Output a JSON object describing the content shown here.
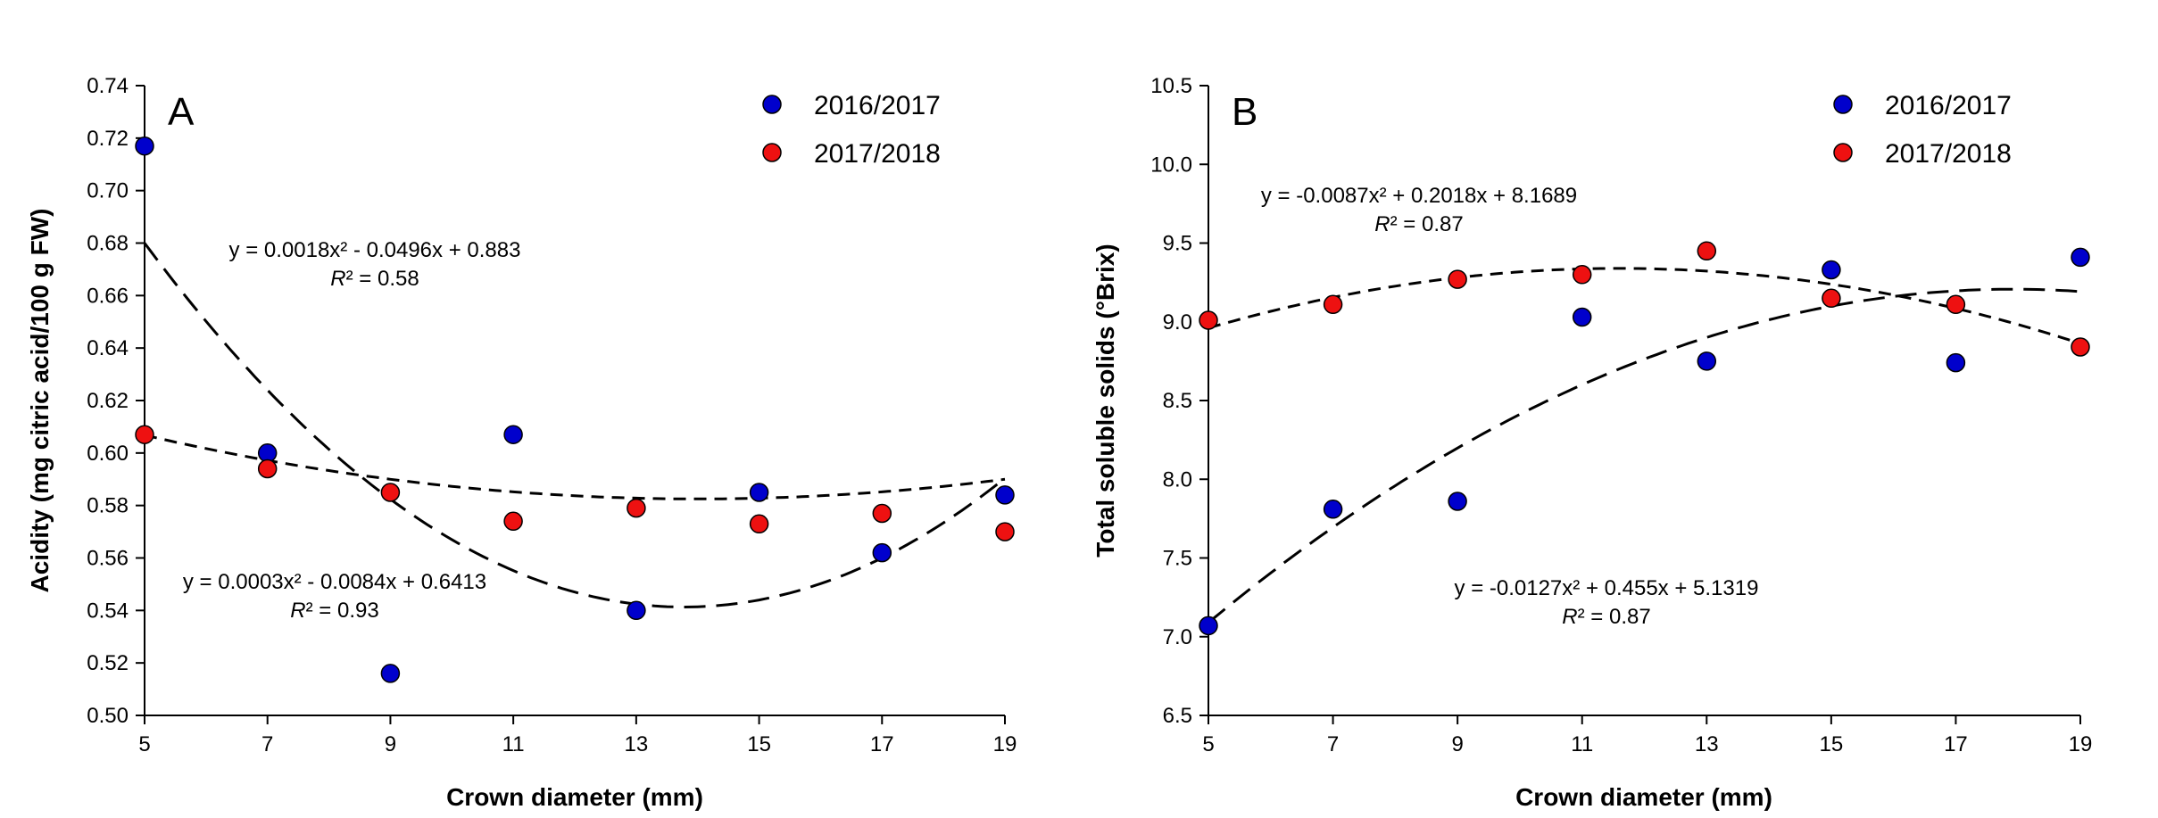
{
  "charts": [
    {
      "panel_label": "A",
      "xlabel": "Crown diameter (mm)",
      "ylabel": "Acidity (mg citric acid/100 g FW)",
      "equations": [
        {
          "series": "2016/2017",
          "eq": "y = 0.0018x² - 0.0496x + 0.883",
          "r2_label": "R",
          "r2_value": "² = 0.58"
        },
        {
          "series": "2017/2018",
          "eq": "y = 0.0003x² - 0.0084x + 0.6413",
          "r2_label": "R",
          "r2_value": "² = 0.93"
        }
      ]
    },
    {
      "panel_label": "B",
      "xlabel": "Crown diameter (mm)",
      "ylabel": "Total soluble solids (°Brix)",
      "equations": [
        {
          "series": "2017/2018",
          "eq": "y = -0.0087x² + 0.2018x + 8.1689",
          "r2_label": "R",
          "r2_value": "² = 0.87"
        },
        {
          "series": "2016/2017",
          "eq": "y = -0.0127x² + 0.455x + 5.1319",
          "r2_label": "R",
          "r2_value": "² = 0.87"
        }
      ]
    }
  ],
  "chart_data": [
    {
      "type": "scatter",
      "panel": "A",
      "title": "",
      "xlabel": "Crown diameter (mm)",
      "ylabel": "Acidity (mg citric acid/100 g FW)",
      "xlim": [
        5,
        19
      ],
      "ylim": [
        0.5,
        0.74
      ],
      "x_ticks": [
        "5",
        "7",
        "9",
        "11",
        "13",
        "15",
        "17",
        "19"
      ],
      "y_ticks": [
        "0.50",
        "0.52",
        "0.54",
        "0.56",
        "0.58",
        "0.60",
        "0.62",
        "0.64",
        "0.66",
        "0.68",
        "0.70",
        "0.72",
        "0.74"
      ],
      "legend_position": "top-right",
      "grid": false,
      "series": [
        {
          "name": "2016/2017",
          "color": "#0000cc",
          "x": [
            5,
            7,
            9,
            11,
            13,
            15,
            17,
            19
          ],
          "y": [
            0.717,
            0.6,
            0.516,
            0.607,
            0.54,
            0.585,
            0.562,
            0.584
          ],
          "fit": {
            "a": 0.0018,
            "b": -0.0496,
            "c": 0.883
          }
        },
        {
          "name": "2017/2018",
          "color": "#ee1111",
          "x": [
            5,
            7,
            9,
            11,
            13,
            15,
            17,
            19
          ],
          "y": [
            0.607,
            0.594,
            0.585,
            0.574,
            0.579,
            0.573,
            0.577,
            0.57
          ],
          "fit": {
            "a": 0.0003,
            "b": -0.0084,
            "c": 0.6413
          }
        }
      ]
    },
    {
      "type": "scatter",
      "panel": "B",
      "title": "",
      "xlabel": "Crown diameter (mm)",
      "ylabel": "Total soluble solids (°Brix)",
      "xlim": [
        5,
        19
      ],
      "ylim": [
        6.5,
        10.5
      ],
      "x_ticks": [
        "5",
        "7",
        "9",
        "11",
        "13",
        "15",
        "17",
        "19"
      ],
      "y_ticks": [
        "6.5",
        "7.0",
        "7.5",
        "8.0",
        "8.5",
        "9.0",
        "9.5",
        "10.0",
        "10.5"
      ],
      "legend_position": "top-right",
      "grid": false,
      "series": [
        {
          "name": "2016/2017",
          "color": "#0000cc",
          "x": [
            5,
            7,
            9,
            11,
            13,
            15,
            17,
            19
          ],
          "y": [
            7.07,
            7.81,
            7.86,
            9.03,
            8.75,
            9.33,
            8.74,
            9.41
          ],
          "fit": {
            "a": -0.0127,
            "b": 0.455,
            "c": 5.1319
          }
        },
        {
          "name": "2017/2018",
          "color": "#ee1111",
          "x": [
            5,
            7,
            9,
            11,
            13,
            15,
            17,
            19
          ],
          "y": [
            9.01,
            9.11,
            9.27,
            9.3,
            9.45,
            9.15,
            9.11,
            8.84
          ],
          "fit": {
            "a": -0.0087,
            "b": 0.2018,
            "c": 8.1689
          }
        }
      ]
    }
  ]
}
